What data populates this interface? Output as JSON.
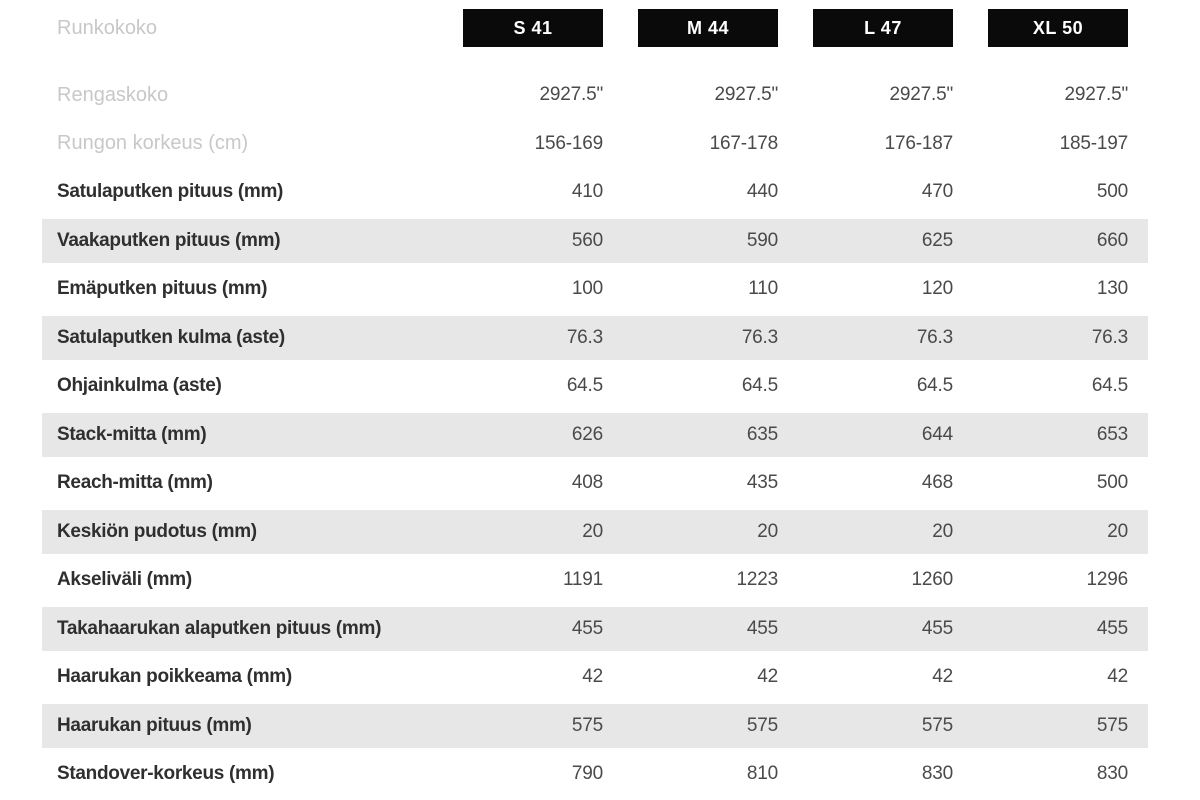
{
  "header": {
    "label": "Runkokoko",
    "sizes": [
      {
        "label": "S 41"
      },
      {
        "label": "M 44"
      },
      {
        "label": "L 47"
      },
      {
        "label": "XL 50"
      }
    ]
  },
  "rows": [
    {
      "label": "Rengaskoko",
      "values": [
        "2927.5\"",
        "2927.5\"",
        "2927.5\"",
        "2927.5\""
      ],
      "muted_label": true,
      "shaded": false
    },
    {
      "label": "Rungon korkeus (cm)",
      "values": [
        "156-169",
        "167-178",
        "176-187",
        "185-197"
      ],
      "muted_label": true,
      "shaded": false
    },
    {
      "label": "Satulaputken pituus (mm)",
      "values": [
        "410",
        "440",
        "470",
        "500"
      ],
      "muted_label": false,
      "shaded": false
    },
    {
      "label": "Vaakaputken pituus (mm)",
      "values": [
        "560",
        "590",
        "625",
        "660"
      ],
      "muted_label": false,
      "shaded": true
    },
    {
      "label": "Emäputken pituus (mm)",
      "values": [
        "100",
        "110",
        "120",
        "130"
      ],
      "muted_label": false,
      "shaded": false
    },
    {
      "label": "Satulaputken kulma (aste)",
      "values": [
        "76.3",
        "76.3",
        "76.3",
        "76.3"
      ],
      "muted_label": false,
      "shaded": true
    },
    {
      "label": "Ohjainkulma (aste)",
      "values": [
        "64.5",
        "64.5",
        "64.5",
        "64.5"
      ],
      "muted_label": false,
      "shaded": false
    },
    {
      "label": "Stack-mitta (mm)",
      "values": [
        "626",
        "635",
        "644",
        "653"
      ],
      "muted_label": false,
      "shaded": true
    },
    {
      "label": "Reach-mitta (mm)",
      "values": [
        "408",
        "435",
        "468",
        "500"
      ],
      "muted_label": false,
      "shaded": false
    },
    {
      "label": "Keskiön pudotus (mm)",
      "values": [
        "20",
        "20",
        "20",
        "20"
      ],
      "muted_label": false,
      "shaded": true
    },
    {
      "label": "Akseliväli (mm)",
      "values": [
        "1191",
        "1223",
        "1260",
        "1296"
      ],
      "muted_label": false,
      "shaded": false
    },
    {
      "label": "Takahaarukan alaputken pituus (mm)",
      "values": [
        "455",
        "455",
        "455",
        "455"
      ],
      "muted_label": false,
      "shaded": true
    },
    {
      "label": "Haarukan poikkeama (mm)",
      "values": [
        "42",
        "42",
        "42",
        "42"
      ],
      "muted_label": false,
      "shaded": false
    },
    {
      "label": "Haarukan pituus (mm)",
      "values": [
        "575",
        "575",
        "575",
        "575"
      ],
      "muted_label": false,
      "shaded": true
    },
    {
      "label": "Standover-korkeus (mm)",
      "values": [
        "790",
        "810",
        "830",
        "830"
      ],
      "muted_label": false,
      "shaded": false
    }
  ],
  "colors": {
    "shaded_row_bg": "#e7e7e7",
    "badge_bg": "#0a0a0a",
    "badge_text": "#ffffff",
    "label_text": "#2f2f2f",
    "muted_label_text": "#c8c8c8",
    "value_text": "#4a4a4a"
  }
}
